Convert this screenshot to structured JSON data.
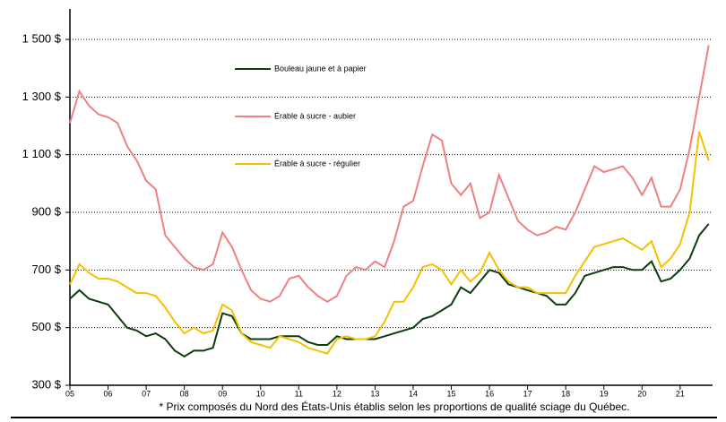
{
  "chart_data": {
    "type": "line",
    "footnote": "* Prix composés du Nord des États-Unis établis selon les proportions de qualité sciage du Québec.",
    "x": [
      2005,
      2005.25,
      2005.5,
      2005.75,
      2006,
      2006.25,
      2006.5,
      2006.75,
      2007,
      2007.25,
      2007.5,
      2007.75,
      2008,
      2008.25,
      2008.5,
      2008.75,
      2009,
      2009.25,
      2009.5,
      2009.75,
      2010,
      2010.25,
      2010.5,
      2010.75,
      2011,
      2011.25,
      2011.5,
      2011.75,
      2012,
      2012.25,
      2012.5,
      2012.75,
      2013,
      2013.25,
      2013.5,
      2013.75,
      2014,
      2014.25,
      2014.5,
      2014.75,
      2015,
      2015.25,
      2015.5,
      2015.75,
      2016,
      2016.25,
      2016.5,
      2016.75,
      2017,
      2017.25,
      2017.5,
      2017.75,
      2018,
      2018.25,
      2018.5,
      2018.75,
      2019,
      2019.25,
      2019.5,
      2019.75,
      2020,
      2020.25,
      2020.5,
      2020.75,
      2021,
      2021.25,
      2021.5,
      2021.75
    ],
    "series": [
      {
        "name": "Bouleau jaune et à papier",
        "color": "#0b3d0b",
        "values": [
          600,
          630,
          600,
          590,
          580,
          540,
          500,
          490,
          470,
          480,
          460,
          420,
          400,
          420,
          420,
          430,
          550,
          540,
          480,
          460,
          460,
          460,
          470,
          470,
          470,
          450,
          440,
          440,
          470,
          460,
          460,
          460,
          460,
          470,
          480,
          490,
          500,
          530,
          540,
          560,
          580,
          640,
          620,
          660,
          700,
          690,
          650,
          640,
          630,
          620,
          610,
          580,
          580,
          620,
          680,
          690,
          700,
          710,
          710,
          700,
          700,
          730,
          660,
          670,
          700,
          740,
          820,
          860
        ]
      },
      {
        "name": "Érable à sucre - aubier",
        "color": "#f08080",
        "values": [
          1210,
          1320,
          1270,
          1240,
          1230,
          1210,
          1130,
          1080,
          1010,
          980,
          820,
          780,
          740,
          710,
          700,
          720,
          830,
          780,
          700,
          630,
          600,
          590,
          610,
          670,
          680,
          640,
          610,
          590,
          610,
          680,
          710,
          700,
          730,
          710,
          800,
          920,
          940,
          1060,
          1170,
          1150,
          1000,
          960,
          1000,
          880,
          900,
          1030,
          950,
          870,
          840,
          820,
          830,
          850,
          840,
          900,
          980,
          1060,
          1040,
          1050,
          1060,
          1020,
          960,
          1020,
          920,
          920,
          980,
          1120,
          1300,
          1480
        ]
      },
      {
        "name": "Érable à sucre - régulier",
        "color": "#f5c000",
        "values": [
          650,
          720,
          690,
          670,
          670,
          660,
          640,
          620,
          620,
          610,
          570,
          520,
          480,
          500,
          480,
          490,
          580,
          560,
          480,
          450,
          440,
          430,
          470,
          460,
          450,
          430,
          420,
          410,
          460,
          470,
          460,
          460,
          470,
          520,
          590,
          590,
          640,
          710,
          720,
          700,
          650,
          700,
          660,
          690,
          760,
          700,
          660,
          640,
          640,
          620,
          620,
          620,
          620,
          680,
          730,
          780,
          790,
          800,
          810,
          790,
          770,
          800,
          710,
          740,
          790,
          900,
          1180,
          1080
        ]
      }
    ],
    "xlim": [
      2005,
      2021.85
    ],
    "xticks": [
      {
        "value": 2005,
        "label": "05"
      },
      {
        "value": 2006,
        "label": "06"
      },
      {
        "value": 2007,
        "label": "07"
      },
      {
        "value": 2008,
        "label": "08"
      },
      {
        "value": 2009,
        "label": "09"
      },
      {
        "value": 2010,
        "label": "10"
      },
      {
        "value": 2011,
        "label": "11"
      },
      {
        "value": 2012,
        "label": "12"
      },
      {
        "value": 2013,
        "label": "13"
      },
      {
        "value": 2014,
        "label": "14"
      },
      {
        "value": 2015,
        "label": "15"
      },
      {
        "value": 2016,
        "label": "16"
      },
      {
        "value": 2017,
        "label": "17"
      },
      {
        "value": 2018,
        "label": "18"
      },
      {
        "value": 2019,
        "label": "19"
      },
      {
        "value": 2020,
        "label": "20"
      },
      {
        "value": 2021,
        "label": "21"
      }
    ],
    "ylim": [
      300,
      1500
    ],
    "yticks": [
      {
        "value": 300,
        "label": "300 $"
      },
      {
        "value": 500,
        "label": "500 $"
      },
      {
        "value": 700,
        "label": "700 $"
      },
      {
        "value": 900,
        "label": "900 $"
      },
      {
        "value": 1100,
        "label": "1 100 $"
      },
      {
        "value": 1300,
        "label": "1 300 $"
      },
      {
        "value": 1500,
        "label": "1 500 $"
      }
    ],
    "grid": true
  }
}
